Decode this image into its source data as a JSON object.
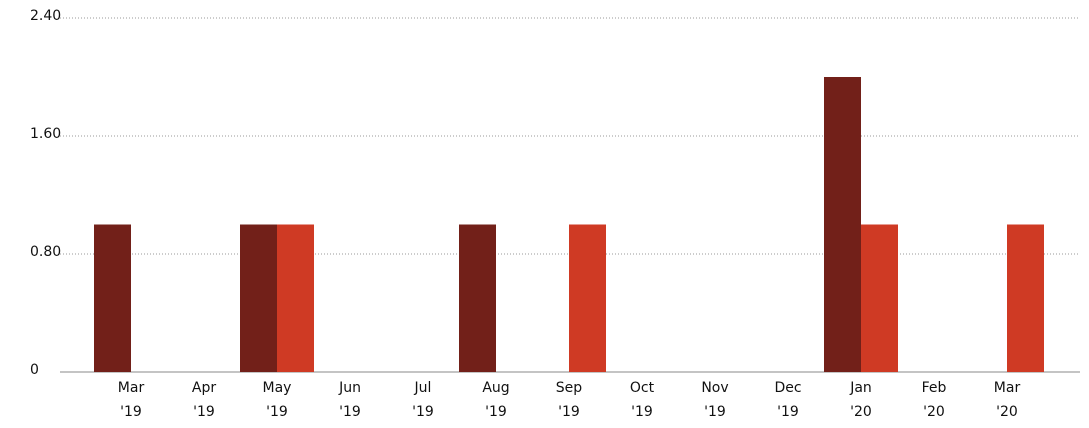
{
  "chart_data": {
    "type": "bar",
    "categories": [
      [
        "Mar",
        "'19"
      ],
      [
        "Apr",
        "'19"
      ],
      [
        "May",
        "'19"
      ],
      [
        "Jun",
        "'19"
      ],
      [
        "Jul",
        "'19"
      ],
      [
        "Aug",
        "'19"
      ],
      [
        "Sep",
        "'19"
      ],
      [
        "Oct",
        "'19"
      ],
      [
        "Nov",
        "'19"
      ],
      [
        "Dec",
        "'19"
      ],
      [
        "Jan",
        "'20"
      ],
      [
        "Feb",
        "'20"
      ],
      [
        "Mar",
        "'20"
      ]
    ],
    "series": [
      {
        "color": "#722019",
        "values": [
          1,
          0,
          1,
          0,
          0,
          1,
          0,
          0,
          0,
          0,
          2,
          0,
          0
        ]
      },
      {
        "color": "#cf3a24",
        "values": [
          0,
          0,
          1,
          0,
          0,
          0,
          1,
          0,
          0,
          0,
          1,
          0,
          1
        ]
      }
    ],
    "ylim": [
      0,
      2.4
    ],
    "yticks": [
      0,
      {
        "value": 0.8,
        "label": "0.80"
      },
      {
        "value": 1.6,
        "label": "1.60"
      },
      {
        "value": 2.4,
        "label": "2.40"
      }
    ],
    "grid": true
  }
}
